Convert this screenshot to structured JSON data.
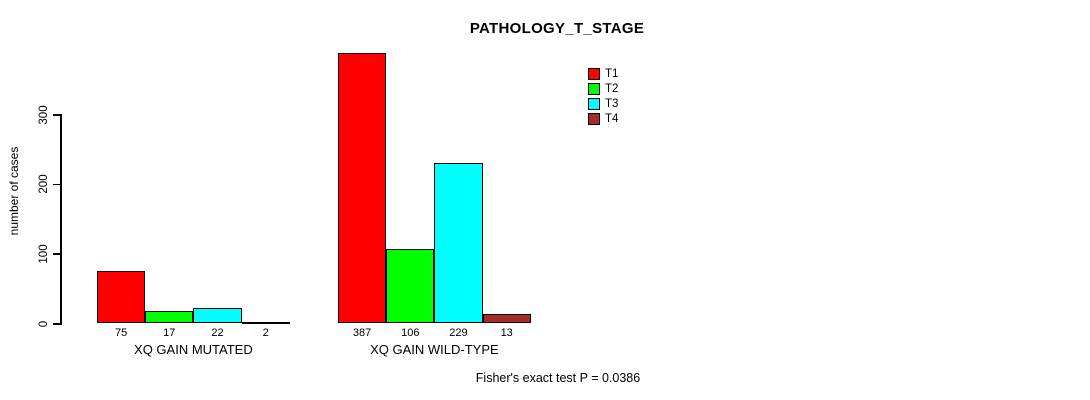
{
  "title": "PATHOLOGY_T_STAGE",
  "footer": {
    "stat_text": "Fisher's exact test P = 0.0386"
  },
  "chart_data": {
    "type": "bar",
    "title": "PATHOLOGY_T_STAGE",
    "xlabel": "",
    "ylabel": "number of cases",
    "ylim": [
      0,
      390
    ],
    "yticks": [
      0,
      100,
      200,
      300
    ],
    "grid": false,
    "legend_position": "top-right",
    "bar_value_labels_shown": true,
    "categories": [
      "XQ GAIN MUTATED",
      "XQ GAIN WILD-TYPE"
    ],
    "series": [
      {
        "name": "T1",
        "color": "#ff0000",
        "values": [
          75,
          387
        ]
      },
      {
        "name": "T2",
        "color": "#00ff00",
        "values": [
          17,
          106
        ]
      },
      {
        "name": "T3",
        "color": "#00ffff",
        "values": [
          22,
          229
        ]
      },
      {
        "name": "T4",
        "color": "#a52a2a",
        "values": [
          2,
          13
        ]
      }
    ],
    "annotation": "Fisher's exact test P = 0.0386"
  }
}
